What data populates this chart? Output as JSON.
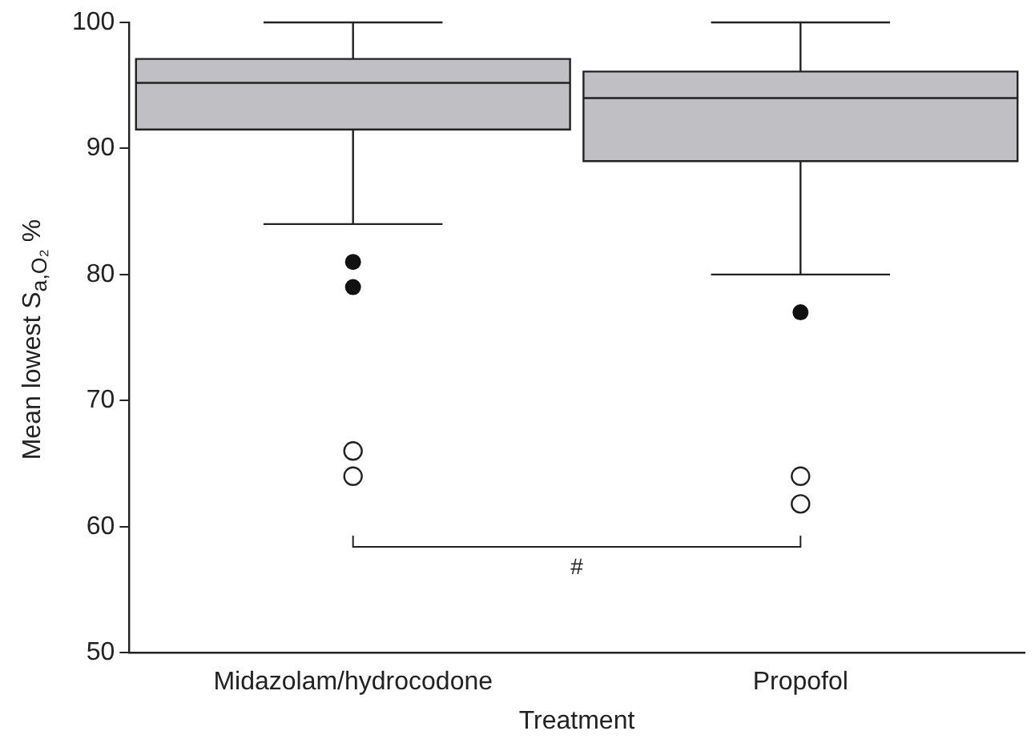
{
  "chart_data": {
    "type": "box",
    "xlabel": "Treatment",
    "ylabel": "Mean lowest S$_{a,O₂}$ %",
    "categories": [
      "Midazolam/hydrocodone",
      "Propofol"
    ],
    "boxes": [
      {
        "low": 84,
        "q1": 91.5,
        "median": 95.2,
        "q3": 97.1,
        "high": 100,
        "outliers": [
          81,
          79
        ]
      },
      {
        "low": 80,
        "q1": 89,
        "median": 94,
        "q3": 96.1,
        "high": 100,
        "outliers": [
          77
        ]
      }
    ],
    "color": "#c0c0c4",
    "series": [
      {
        "type": "scatter",
        "color": "#ffffff",
        "x": [
          "Midazolam/hydrocodone",
          "Midazolam/hydrocodone",
          "Propofol",
          "Propofol"
        ],
        "values": [
          66,
          64,
          64,
          61.8
        ]
      }
    ],
    "marker": "circle",
    "ylim": [
      50,
      100
    ],
    "yticks": [
      50,
      60,
      70,
      80,
      90,
      100
    ],
    "grid": false,
    "legend": false,
    "annotations": [
      "#"
    ]
  }
}
